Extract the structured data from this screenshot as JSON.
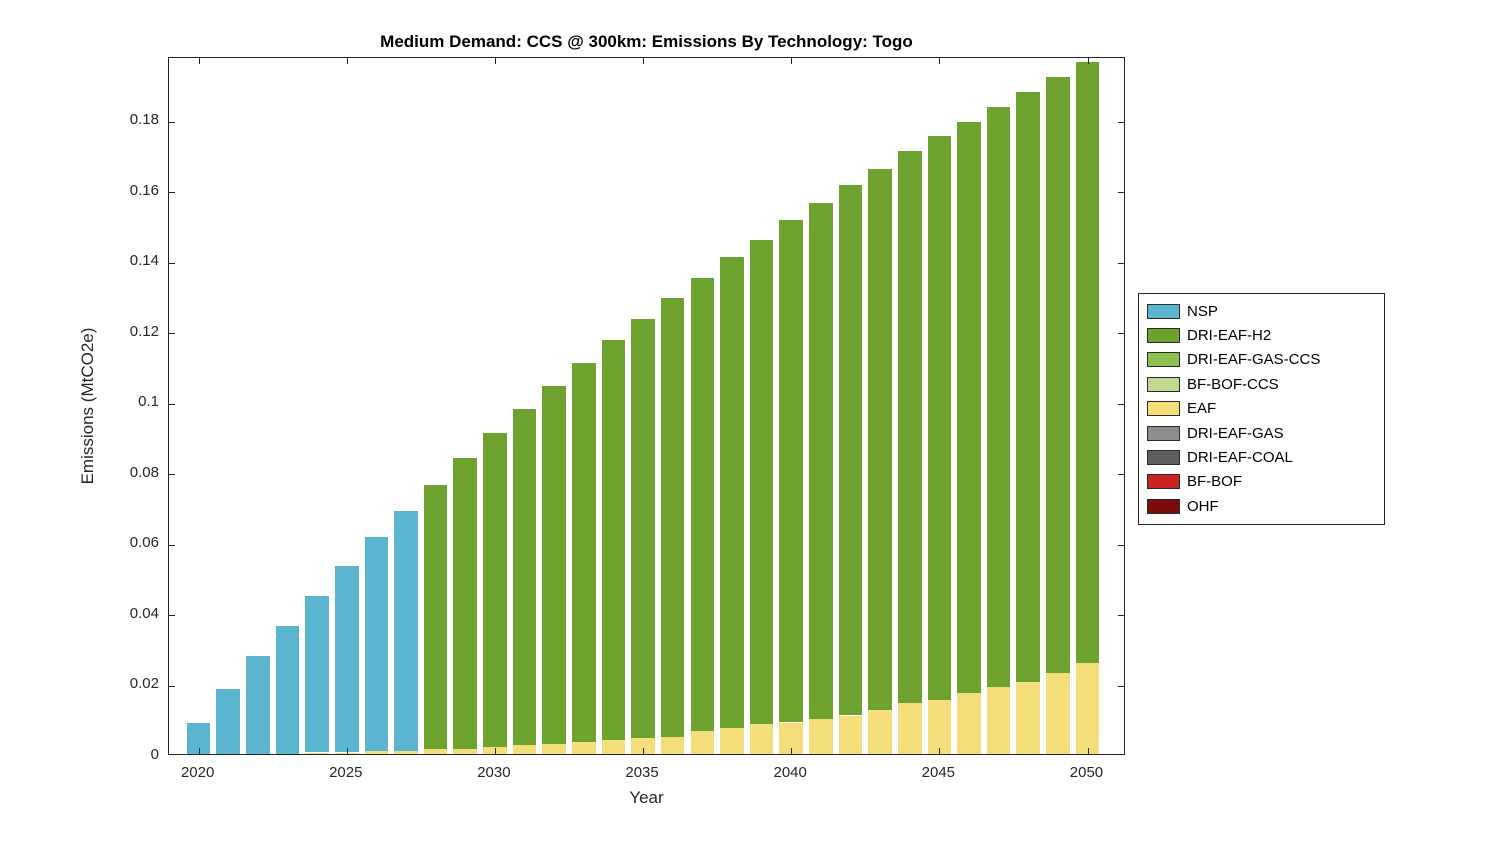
{
  "chart_data": {
    "type": "bar",
    "stacked": true,
    "title": "Medium Demand: CCS @ 300km: Emissions By Technology: Togo",
    "xlabel": "Year",
    "ylabel": "Emissions (MtCO2e)",
    "ylim": [
      0,
      0.198
    ],
    "xlim": [
      2019,
      2051.3
    ],
    "bar_width_years": 0.8,
    "grid": false,
    "legend_position": "right-outside",
    "yticks": [
      0,
      0.02,
      0.04,
      0.06,
      0.08,
      0.1,
      0.12,
      0.14,
      0.16,
      0.18
    ],
    "ytick_labels": [
      "0",
      "0.02",
      "0.04",
      "0.06",
      "0.08",
      "0.1",
      "0.12",
      "0.14",
      "0.16",
      "0.18"
    ],
    "xticks": [
      2020,
      2025,
      2030,
      2035,
      2040,
      2045,
      2050
    ],
    "xtick_labels": [
      "2020",
      "2025",
      "2030",
      "2035",
      "2040",
      "2045",
      "2050"
    ],
    "years": [
      2020,
      2021,
      2022,
      2023,
      2024,
      2025,
      2026,
      2027,
      2028,
      2029,
      2030,
      2031,
      2032,
      2033,
      2034,
      2035,
      2036,
      2037,
      2038,
      2039,
      2040,
      2041,
      2042,
      2043,
      2044,
      2045,
      2046,
      2047,
      2048,
      2049,
      2050
    ],
    "series": [
      {
        "name": "NSP",
        "color": "#5CB5CE",
        "values": [
          0.0095,
          0.019,
          0.028,
          0.0365,
          0.0445,
          0.053,
          0.0605,
          0.068,
          0,
          0,
          0,
          0,
          0,
          0,
          0,
          0,
          0,
          0,
          0,
          0,
          0,
          0,
          0,
          0,
          0,
          0,
          0,
          0,
          0,
          0,
          0
        ]
      },
      {
        "name": "DRI-EAF-H2",
        "color": "#6CA22D",
        "values": [
          0,
          0,
          0,
          0,
          0,
          0,
          0,
          0,
          0.075,
          0.0825,
          0.089,
          0.0955,
          0.1015,
          0.1075,
          0.1135,
          0.119,
          0.1245,
          0.1285,
          0.1335,
          0.1375,
          0.1425,
          0.1465,
          0.1505,
          0.1535,
          0.1565,
          0.16,
          0.162,
          0.1645,
          0.1675,
          0.169,
          0.1705
        ]
      },
      {
        "name": "DRI-EAF-GAS-CCS",
        "color": "#8DC04E",
        "values": [
          0,
          0,
          0,
          0,
          0,
          0,
          0,
          0,
          0,
          0,
          0,
          0,
          0,
          0,
          0,
          0,
          0,
          0,
          0,
          0,
          0,
          0,
          0,
          0,
          0,
          0,
          0,
          0,
          0,
          0,
          0
        ]
      },
      {
        "name": "BF-BOF-CCS",
        "color": "#BEDA90",
        "values": [
          0,
          0,
          0,
          0,
          0,
          0,
          0,
          0,
          0,
          0,
          0,
          0,
          0,
          0,
          0,
          0,
          0,
          0,
          0,
          0,
          0,
          0,
          0,
          0,
          0,
          0,
          0,
          0,
          0,
          0,
          0
        ]
      },
      {
        "name": "EAF",
        "color": "#F3DE79",
        "values": [
          0,
          0,
          0.0003,
          0.0005,
          0.001,
          0.001,
          0.0015,
          0.0015,
          0.002,
          0.002,
          0.0025,
          0.003,
          0.0035,
          0.004,
          0.0045,
          0.005,
          0.0055,
          0.007,
          0.008,
          0.009,
          0.0095,
          0.0105,
          0.0115,
          0.013,
          0.015,
          0.016,
          0.018,
          0.0195,
          0.021,
          0.0235,
          0.0265
        ]
      },
      {
        "name": "DRI-EAF-GAS",
        "color": "#8E8E8E",
        "values": [
          0,
          0,
          0,
          0,
          0,
          0,
          0,
          0,
          0,
          0,
          0,
          0,
          0,
          0,
          0,
          0,
          0,
          0,
          0,
          0,
          0,
          0,
          0,
          0,
          0,
          0,
          0,
          0,
          0,
          0,
          0
        ]
      },
      {
        "name": "DRI-EAF-COAL",
        "color": "#5E5E5E",
        "values": [
          0,
          0,
          0,
          0,
          0,
          0,
          0,
          0,
          0,
          0,
          0,
          0,
          0,
          0,
          0,
          0,
          0,
          0,
          0,
          0,
          0,
          0,
          0,
          0,
          0,
          0,
          0,
          0,
          0,
          0,
          0
        ]
      },
      {
        "name": "BF-BOF",
        "color": "#CB2222",
        "values": [
          0,
          0,
          0,
          0,
          0,
          0,
          0,
          0,
          0,
          0,
          0,
          0,
          0,
          0,
          0,
          0,
          0,
          0,
          0,
          0,
          0,
          0,
          0,
          0,
          0,
          0,
          0,
          0,
          0,
          0,
          0
        ]
      },
      {
        "name": "OHF",
        "color": "#7D0D0D",
        "values": [
          0,
          0,
          0,
          0,
          0,
          0,
          0,
          0,
          0,
          0,
          0,
          0,
          0,
          0,
          0,
          0,
          0,
          0,
          0,
          0,
          0,
          0,
          0,
          0,
          0,
          0,
          0,
          0,
          0,
          0,
          0
        ]
      }
    ]
  }
}
